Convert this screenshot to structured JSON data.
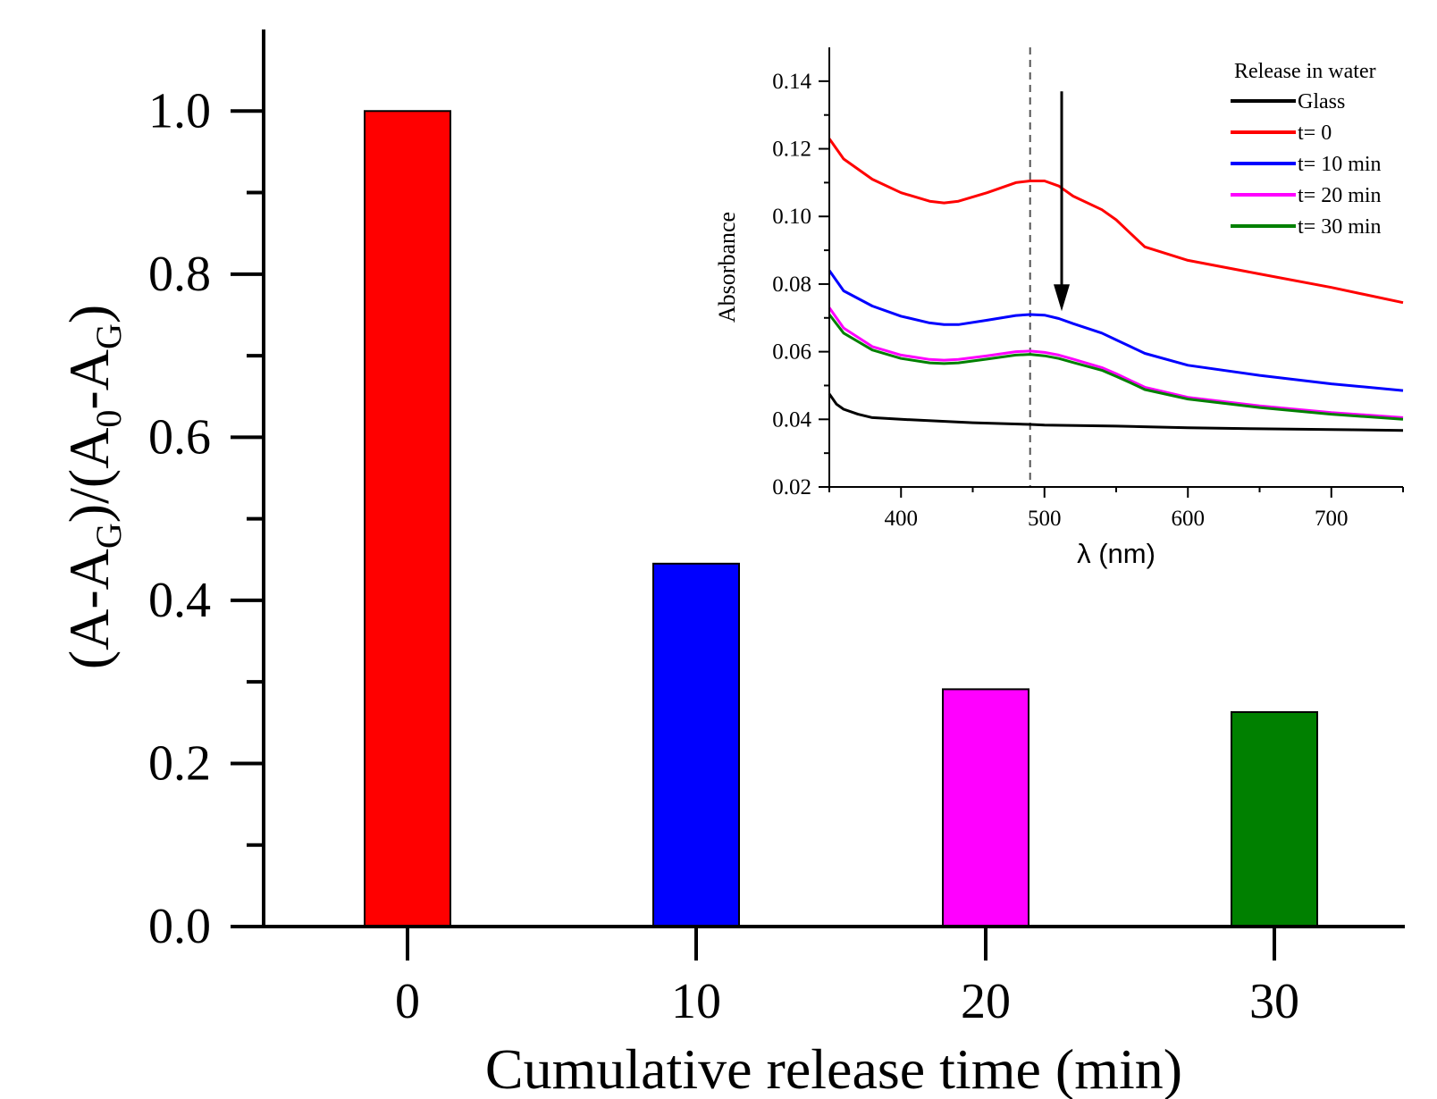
{
  "chart_data": [
    {
      "type": "bar",
      "categories": [
        "0",
        "10",
        "20",
        "30"
      ],
      "values": [
        1.0,
        0.445,
        0.291,
        0.263
      ],
      "colors": [
        "#ff0000",
        "#0000ff",
        "#ff00ff",
        "#008000"
      ],
      "xlabel": "Cumulative release time (min)",
      "ylabel": {
        "parts": [
          {
            "t": "(A-A",
            "sub": false
          },
          {
            "t": "G",
            "sub": true
          },
          {
            "t": ")/(A",
            "sub": false
          },
          {
            "t": "0",
            "sub": true
          },
          {
            "t": "-A",
            "sub": false
          },
          {
            "t": "G",
            "sub": true
          },
          {
            "t": ")",
            "sub": false
          }
        ]
      },
      "ylim": [
        0,
        1.1
      ],
      "yticks": [
        "0.0",
        "0.2",
        "0.4",
        "0.6",
        "0.8",
        "1.0"
      ],
      "grid": false
    },
    {
      "type": "line",
      "xlabel": "λ (nm)",
      "ylabel": "Absorbance",
      "xlim": [
        350,
        750
      ],
      "ylim": [
        0.02,
        0.15
      ],
      "xticks": [
        "400",
        "500",
        "600",
        "700"
      ],
      "yticks": [
        "0.02",
        "0.04",
        "0.06",
        "0.08",
        "0.10",
        "0.12",
        "0.14"
      ],
      "legend_title": "Release in water",
      "legend_position": "top-right",
      "reference_line_x": 490,
      "arrow": {
        "x": 512,
        "y_from": 0.137,
        "y_to": 0.072
      },
      "grid": false,
      "series": [
        {
          "name": "Glass",
          "color": "#000000",
          "x": [
            350,
            355,
            360,
            370,
            380,
            400,
            450,
            490,
            500,
            550,
            600,
            650,
            700,
            750
          ],
          "y": [
            0.0475,
            0.0445,
            0.043,
            0.0415,
            0.0405,
            0.04,
            0.039,
            0.0385,
            0.0383,
            0.038,
            0.0375,
            0.0372,
            0.037,
            0.0367
          ]
        },
        {
          "name": "t= 0",
          "color": "#ff0000",
          "x": [
            350,
            360,
            380,
            400,
            420,
            430,
            440,
            460,
            480,
            490,
            500,
            510,
            520,
            540,
            550,
            560,
            570,
            600,
            650,
            700,
            750
          ],
          "y": [
            0.123,
            0.117,
            0.111,
            0.107,
            0.1045,
            0.104,
            0.1045,
            0.107,
            0.11,
            0.1105,
            0.1105,
            0.109,
            0.106,
            0.102,
            0.099,
            0.095,
            0.091,
            0.087,
            0.083,
            0.079,
            0.0745
          ]
        },
        {
          "name": "t= 10 min",
          "color": "#0000ff",
          "x": [
            350,
            360,
            380,
            400,
            420,
            430,
            440,
            460,
            480,
            490,
            500,
            510,
            520,
            540,
            550,
            560,
            570,
            600,
            650,
            700,
            750
          ],
          "y": [
            0.084,
            0.078,
            0.0735,
            0.0705,
            0.0685,
            0.068,
            0.068,
            0.0693,
            0.0707,
            0.071,
            0.0708,
            0.0698,
            0.0683,
            0.0655,
            0.0635,
            0.0615,
            0.0595,
            0.056,
            0.053,
            0.0505,
            0.0485
          ]
        },
        {
          "name": "t= 20 min",
          "color": "#ff00ff",
          "x": [
            350,
            360,
            380,
            400,
            420,
            430,
            440,
            460,
            480,
            490,
            500,
            510,
            520,
            540,
            550,
            560,
            570,
            600,
            650,
            700,
            750
          ],
          "y": [
            0.073,
            0.067,
            0.0615,
            0.059,
            0.0577,
            0.0575,
            0.0577,
            0.0588,
            0.06,
            0.0602,
            0.0598,
            0.059,
            0.0578,
            0.0553,
            0.0535,
            0.0515,
            0.0495,
            0.0465,
            0.044,
            0.042,
            0.0405
          ]
        },
        {
          "name": "t= 30 min",
          "color": "#008000",
          "x": [
            350,
            360,
            380,
            400,
            420,
            430,
            440,
            460,
            480,
            490,
            500,
            510,
            520,
            540,
            550,
            560,
            570,
            600,
            650,
            700,
            750
          ],
          "y": [
            0.071,
            0.0655,
            0.0605,
            0.058,
            0.0567,
            0.0565,
            0.0567,
            0.0578,
            0.059,
            0.0592,
            0.0588,
            0.058,
            0.0568,
            0.0545,
            0.0527,
            0.0508,
            0.0488,
            0.046,
            0.0435,
            0.0415,
            0.04
          ]
        }
      ]
    }
  ]
}
